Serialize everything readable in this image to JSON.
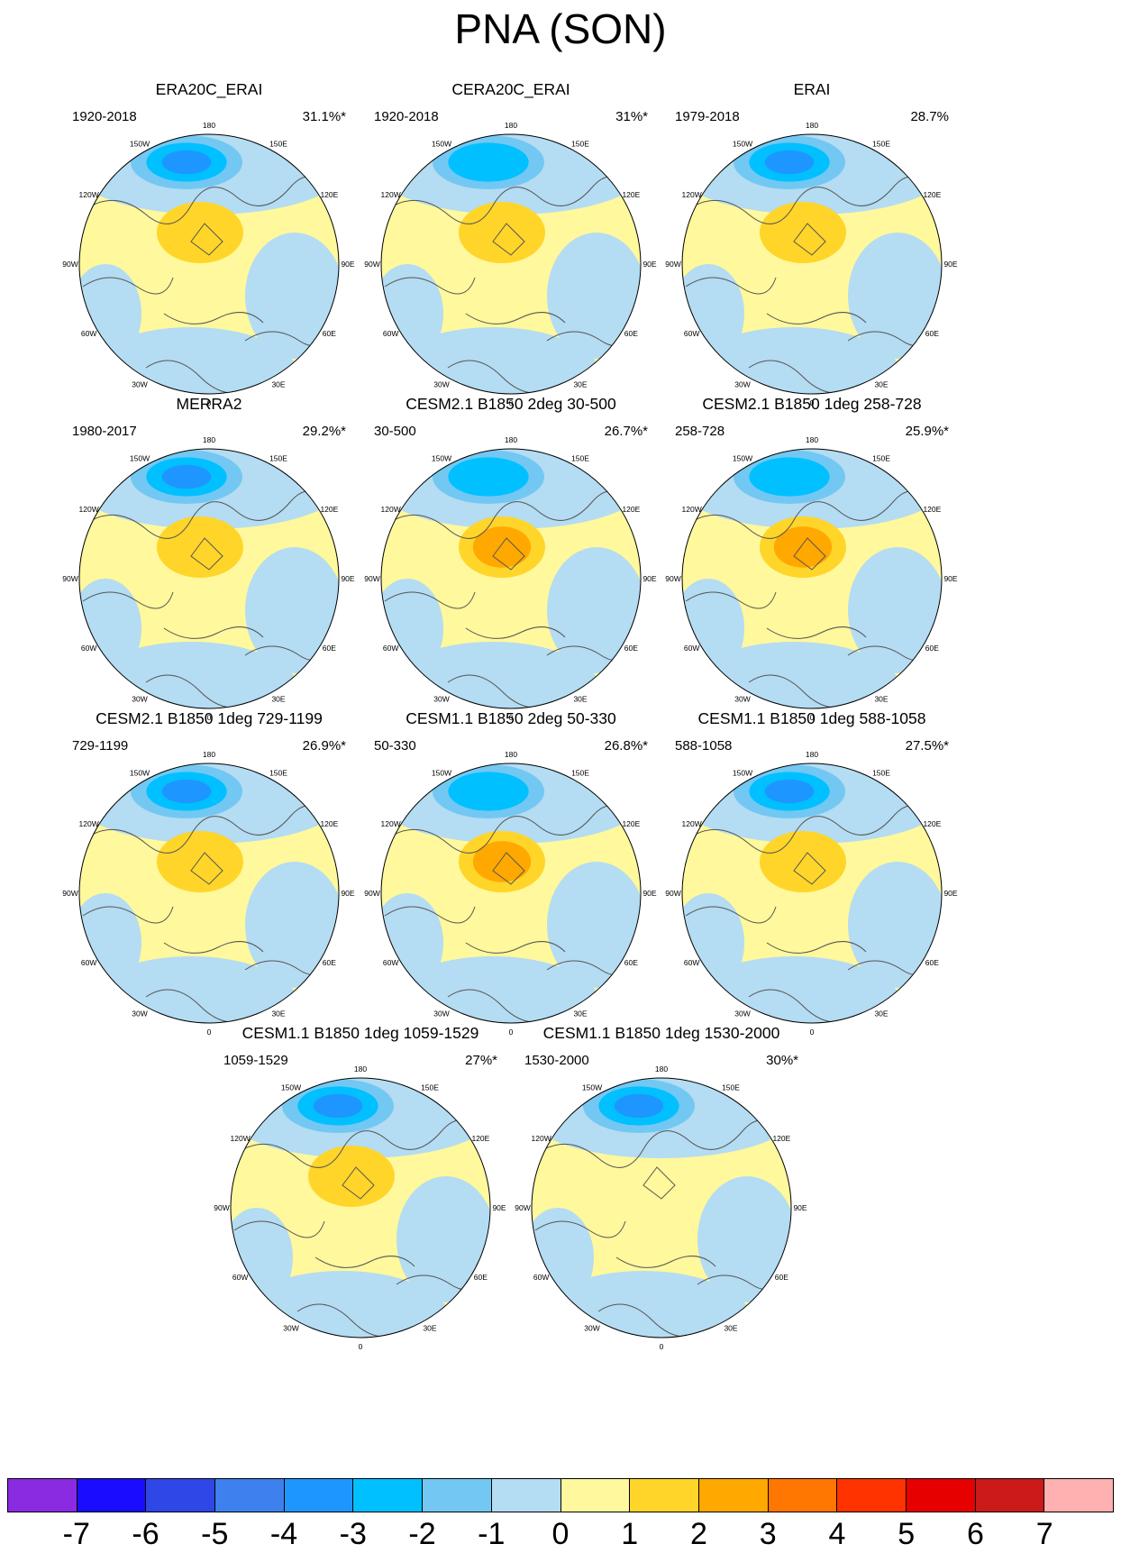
{
  "title": "PNA (SON)",
  "longitude_labels": [
    "180",
    "150E",
    "120E",
    "90E",
    "60E",
    "30E",
    "0",
    "30W",
    "60W",
    "90W",
    "120W",
    "150W"
  ],
  "panels": [
    {
      "title": "ERA20C_ERAI",
      "period": "1920-2018",
      "variance": "31.1%*",
      "pattern": {
        "pacific_low": -3.5,
        "canada_high": 2.2,
        "atlantic_low": -1,
        "europe_high": 0
      }
    },
    {
      "title": "CERA20C_ERAI",
      "period": "1920-2018",
      "variance": "31%*",
      "pattern": {
        "pacific_low": -3.3,
        "canada_high": 1.8,
        "atlantic_low": -1,
        "europe_high": 0
      }
    },
    {
      "title": "ERAI",
      "period": "1979-2018",
      "variance": "28.7%",
      "pattern": {
        "pacific_low": -3.6,
        "canada_high": 1.5,
        "atlantic_low": -1,
        "europe_high": 0
      }
    },
    {
      "title": "MERRA2",
      "period": "1980-2017",
      "variance": "29.2%*",
      "pattern": {
        "pacific_low": -3.6,
        "canada_high": 1.5,
        "atlantic_low": -1,
        "europe_high": 0
      }
    },
    {
      "title": "CESM2.1 B1850 2deg 30-500",
      "period": "30-500",
      "variance": "26.7%*",
      "pattern": {
        "pacific_low": -3.2,
        "canada_high": 3.2,
        "atlantic_low": -1,
        "europe_high": 0
      }
    },
    {
      "title": "CESM2.1 B1850 1deg 258-728",
      "period": "258-728",
      "variance": "25.9%*",
      "pattern": {
        "pacific_low": -3.4,
        "canada_high": 2.6,
        "atlantic_low": -1,
        "europe_high": 0
      }
    },
    {
      "title": "CESM2.1 B1850 1deg 729-1199",
      "period": "729-1199",
      "variance": "26.9%*",
      "pattern": {
        "pacific_low": -3.6,
        "canada_high": 2.4,
        "atlantic_low": -1,
        "europe_high": 0
      }
    },
    {
      "title": "CESM1.1 B1850 2deg 50-330",
      "period": "50-330",
      "variance": "26.8%*",
      "pattern": {
        "pacific_low": -3.2,
        "canada_high": 2.6,
        "atlantic_low": -1,
        "europe_high": 0
      }
    },
    {
      "title": "CESM1.1 B1850 1deg 588-1058",
      "period": "588-1058",
      "variance": "27.5%*",
      "pattern": {
        "pacific_low": -3.8,
        "canada_high": 1.6,
        "atlantic_low": -1,
        "europe_high": 0
      }
    },
    {
      "title": "CESM1.1 B1850 1deg 1059-1529",
      "period": "1059-1529",
      "variance": "27%*",
      "pattern": {
        "pacific_low": -3.7,
        "canada_high": 1.7,
        "atlantic_low": -1,
        "europe_high": 0
      }
    },
    {
      "title": "CESM1.1 B1850 1deg 1530-2000",
      "period": "1530-2000",
      "variance": "30%*",
      "pattern": {
        "pacific_low": -3.9,
        "canada_high": 1.3,
        "atlantic_low": -1,
        "europe_high": 0
      }
    }
  ],
  "colorbar": {
    "labels": [
      "-7",
      "-6",
      "-5",
      "-4",
      "-3",
      "-2",
      "-1",
      "0",
      "1",
      "2",
      "3",
      "4",
      "5",
      "6",
      "7"
    ],
    "colors": [
      "#8a2be2",
      "#1a0dff",
      "#2e47e6",
      "#3e80ee",
      "#1e96ff",
      "#00c0ff",
      "#72c8f2",
      "#b4dcf2",
      "#fff89c",
      "#ffd52a",
      "#ffa800",
      "#ff7600",
      "#ff3300",
      "#e60000",
      "#cc1a1a",
      "#ffb0b0"
    ]
  },
  "style": {
    "land_line": "#555555",
    "outline": "#000000"
  }
}
